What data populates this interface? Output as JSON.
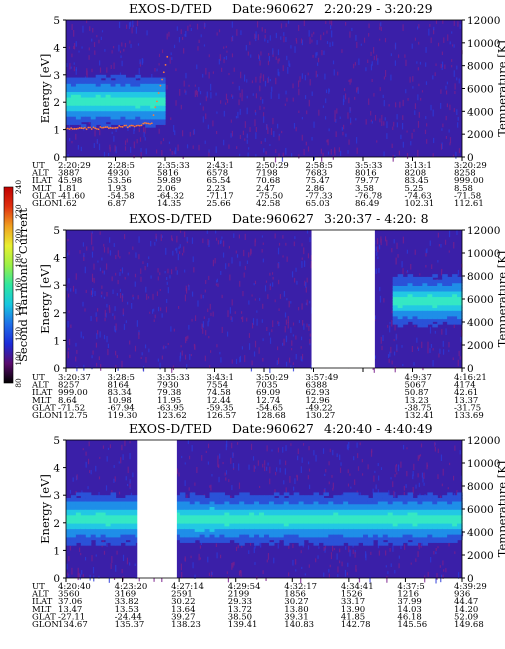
{
  "chart_data": {
    "type": "heatmap",
    "colorbar": {
      "label": "Second Harmonic Current",
      "ticks": [
        "80",
        "100",
        "120",
        "140",
        "160",
        "180",
        "200",
        "220",
        "240"
      ],
      "colors": [
        "#000000",
        "#5a0a6e",
        "#1c2bd8",
        "#1f6ee8",
        "#16c6e0",
        "#2ee6a0",
        "#9af046",
        "#e8f030",
        "#f0a020",
        "#e03010",
        "#c00000"
      ]
    },
    "panels": [
      {
        "title": "EXOS-D/TED",
        "date": "Date:960627",
        "time_range": "2:20:29 - 3:20:29",
        "ylabel_left": "Energy [eV]",
        "ylabel_right": "Temperature [K]",
        "yticks_left": [
          "0",
          "1",
          "2",
          "3",
          "4",
          "5"
        ],
        "yticks_right": [
          "0",
          "2000",
          "4000",
          "6000",
          "8000",
          "10000",
          "12000"
        ],
        "ylim_left": [
          0,
          5
        ],
        "ylim_right": [
          0,
          12000
        ],
        "band_end_fraction": 0.24,
        "band_center_ev": 2.0,
        "gaps": [],
        "row_labels": [
          "UT",
          "ALT",
          "ILAT",
          "MLT",
          "GLAT",
          "GLON"
        ],
        "columns": [
          [
            "2:20:29",
            "3887",
            "45.98",
            "1.81",
            "-41.60",
            "1.62"
          ],
          [
            "2:28:5",
            "4930",
            "53.56",
            "1.93",
            "-54.58",
            "6.87"
          ],
          [
            "2:35:33",
            "5816",
            "59.89",
            "2.06",
            "-64.32",
            "14.35"
          ],
          [
            "2:43:1",
            "6578",
            "65.54",
            "2.23",
            "-71.17",
            "25.66"
          ],
          [
            "2:50:29",
            "7198",
            "70.68",
            "2.47",
            "-75.50",
            "42.58"
          ],
          [
            "2:58:5",
            "7683",
            "75.47",
            "2.86",
            "-77.33",
            "65.03"
          ],
          [
            "3:5:33",
            "8016",
            "79.77",
            "3.58",
            "-76.78",
            "86.49"
          ],
          [
            "3:13:1",
            "8208",
            "83.45",
            "5.25",
            "-74.63",
            "102.31"
          ],
          [
            "3:20:29",
            "8258",
            "999.00",
            "8.58",
            "-71.58",
            "112.61"
          ]
        ]
      },
      {
        "title": "EXOS-D/TED",
        "date": "Date:960627",
        "time_range": "3:20:37 - 4:20: 8",
        "ylabel_left": "Energy [eV]",
        "ylabel_right": "Temperature [K]",
        "yticks_left": [
          "0",
          "1",
          "2",
          "3",
          "4",
          "5"
        ],
        "yticks_right": [
          "0",
          "2000",
          "4000",
          "6000",
          "8000",
          "10000",
          "12000"
        ],
        "ylim_left": [
          0,
          5
        ],
        "ylim_right": [
          0,
          12000
        ],
        "band_start_fraction": 0.82,
        "band_center_ev": 2.4,
        "gaps": [
          [
            0.62,
            0.78
          ]
        ],
        "row_labels": [
          "UT",
          "ALT",
          "ILAT",
          "MLT",
          "GLAT",
          "GLON"
        ],
        "columns": [
          [
            "3:20:37",
            "8257",
            "999.00",
            "8.64",
            "-71.52",
            "112.75"
          ],
          [
            "3:28:5",
            "8164",
            "83.34",
            "10.98",
            "-67.94",
            "119.30"
          ],
          [
            "3:35:33",
            "7930",
            "79.38",
            "11.95",
            "-63.95",
            "123.62"
          ],
          [
            "3:43:1",
            "7554",
            "74.58",
            "12.44",
            "-59.35",
            "126.57"
          ],
          [
            "3:50:29",
            "7035",
            "69.09",
            "12.74",
            "-54.65",
            "128.68"
          ],
          [
            "3:57:49",
            "6388",
            "62.93",
            "12.96",
            "-49.22",
            "130.27"
          ],
          [
            "",
            "",
            " ",
            "",
            "",
            ""
          ],
          [
            "4:9:37",
            "5067",
            "50.87",
            "13.23",
            "-38.75",
            "132.41"
          ],
          [
            "4:16:21",
            "4174",
            "42.61",
            "13.37",
            "-31.75",
            "133.69"
          ]
        ]
      },
      {
        "title": "EXOS-D/TED",
        "date": "Date:960627",
        "time_range": "4:20:40 - 4:40:49",
        "ylabel_left": "Energy [eV]",
        "ylabel_right": "Temperature [K]",
        "yticks_left": [
          "0",
          "1",
          "2",
          "3",
          "4",
          "5"
        ],
        "yticks_right": [
          "0",
          "2000",
          "4000",
          "6000",
          "8000",
          "10000",
          "12000"
        ],
        "ylim_left": [
          0,
          5
        ],
        "ylim_right": [
          0,
          12000
        ],
        "band_center_ev": 2.1,
        "gaps": [
          [
            0.18,
            0.28
          ]
        ],
        "row_labels": [
          "UT",
          "ALT",
          "ILAT",
          "MLT",
          "GLAT",
          "GLON"
        ],
        "columns": [
          [
            "4:20:40",
            "3560",
            "37.06",
            "13.47",
            "-27.11",
            "134.67"
          ],
          [
            "4:23:20",
            "3169",
            "33.82",
            "13.53",
            "-24.44",
            "135.37"
          ],
          [
            "4:27:14",
            "2591",
            "30.22",
            "13.64",
            "39.27",
            "138.23"
          ],
          [
            "4:29:54",
            "2199",
            "29.33",
            "13.72",
            "38.50",
            "139.41"
          ],
          [
            "4:32:17",
            "1856",
            "30.27",
            "13.80",
            "39.31",
            "140.83"
          ],
          [
            "4:34:41",
            "1526",
            "33.17",
            "13.90",
            "41.85",
            "142.78"
          ],
          [
            "4:37:5",
            "1216",
            "37.99",
            "14.03",
            "46.18",
            "145.56"
          ],
          [
            "4:39:29",
            "936",
            "44.47",
            "14.20",
            "52.09",
            "149.68"
          ]
        ]
      }
    ]
  }
}
